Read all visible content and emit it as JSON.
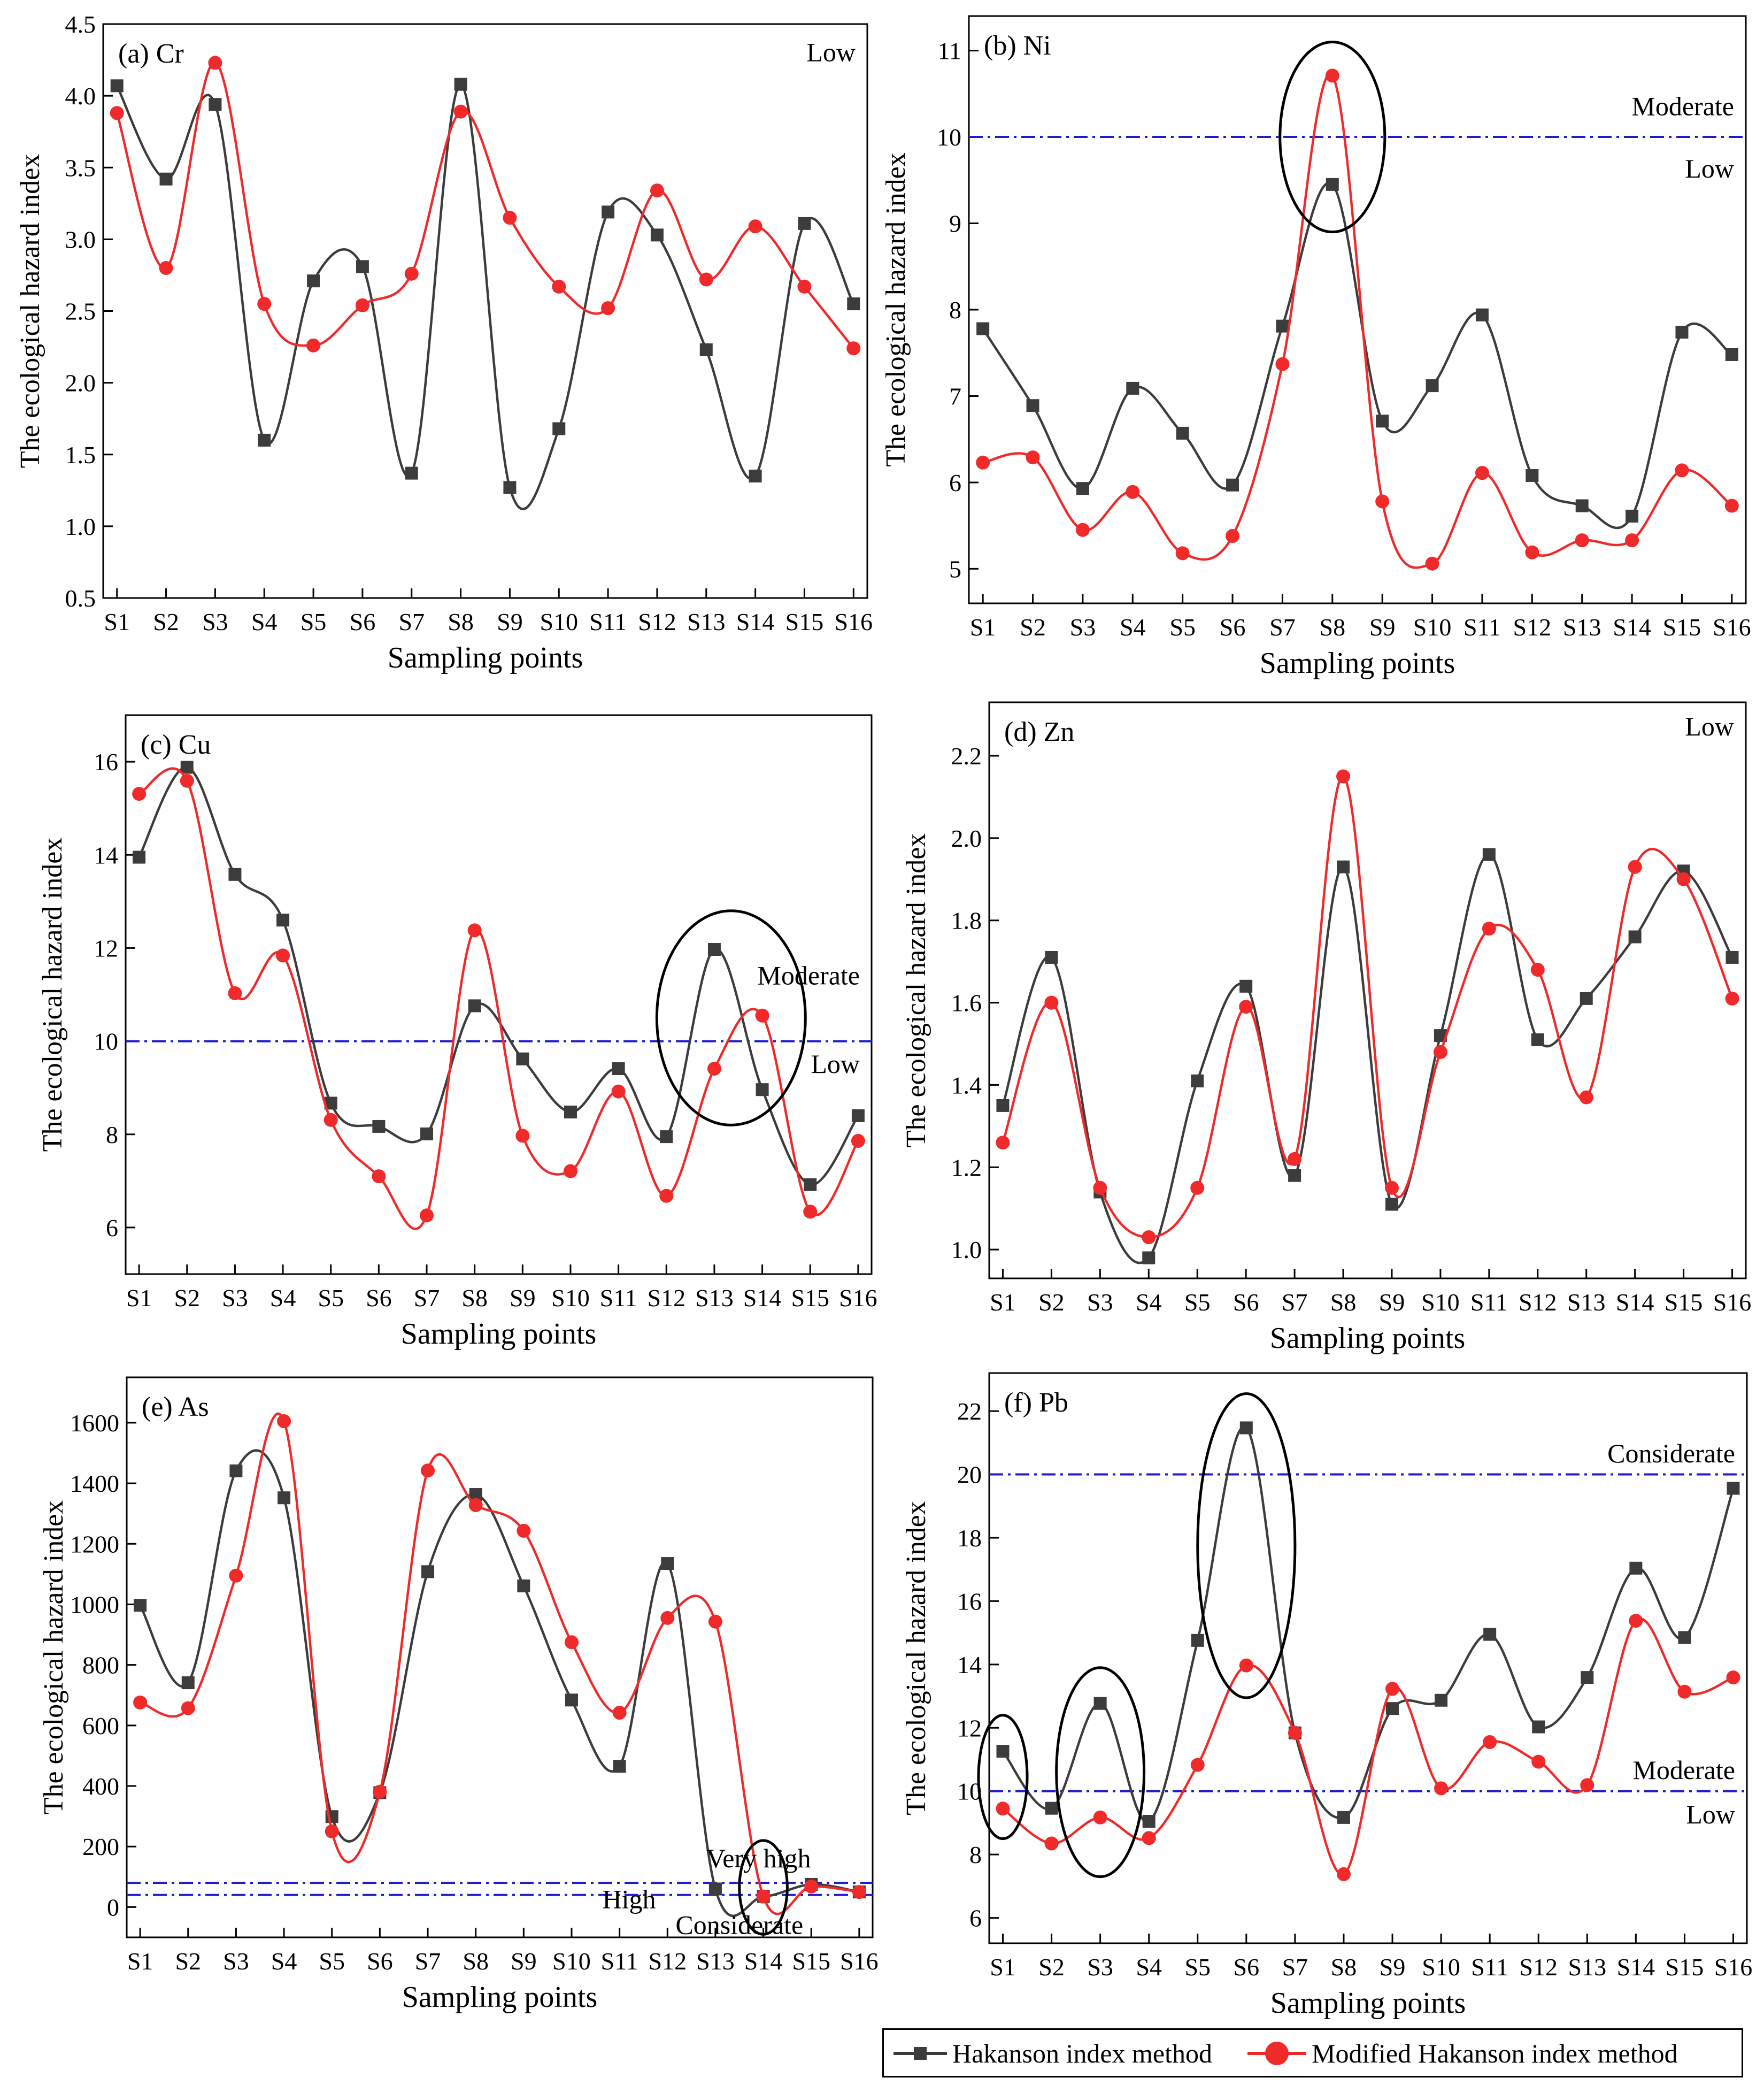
{
  "colors": {
    "hakanson": "#3c3c3c",
    "modified": "#f02a2a",
    "threshold": "#1c1cd6",
    "axis": "#000000"
  },
  "legend": {
    "hakanson_label": "Hakanson index method",
    "modified_label": "Modified Hakanson index method"
  },
  "chart_data": [
    {
      "type": "line",
      "panel_label": "(a) Cr",
      "xlabel": "Sampling points",
      "ylabel": "The ecological hazard index",
      "categories": [
        "S1",
        "S2",
        "S3",
        "S4",
        "S5",
        "S6",
        "S7",
        "S8",
        "S9",
        "S10",
        "S11",
        "S12",
        "S13",
        "S14",
        "S15",
        "S16"
      ],
      "ylim": [
        0.5,
        4.5
      ],
      "yticks": [
        0.5,
        1.0,
        1.5,
        2.0,
        2.5,
        3.0,
        3.5,
        4.0,
        4.5
      ],
      "ytick_labels": [
        "0.5",
        "1.0",
        "1.5",
        "2.0",
        "2.5",
        "3.0",
        "3.5",
        "4.0",
        "4.5"
      ],
      "series": [
        {
          "name": "Hakanson index method",
          "values": [
            4.07,
            3.42,
            3.94,
            1.6,
            2.71,
            2.81,
            1.37,
            4.08,
            1.27,
            1.68,
            3.19,
            3.03,
            2.23,
            1.35,
            3.11,
            2.55
          ]
        },
        {
          "name": "Modified Hakanson index method",
          "values": [
            3.88,
            2.8,
            4.23,
            2.55,
            2.26,
            2.54,
            2.76,
            3.89,
            3.15,
            2.67,
            2.52,
            3.34,
            2.72,
            3.09,
            2.67,
            2.24
          ]
        }
      ],
      "thresholds": [],
      "level_labels": [
        {
          "text": "Low",
          "y": 4.3,
          "pos": "right"
        }
      ],
      "ellipses": []
    },
    {
      "type": "line",
      "panel_label": "(b) Ni",
      "xlabel": "Sampling points",
      "ylabel": "The ecological hazard index",
      "categories": [
        "S1",
        "S2",
        "S3",
        "S4",
        "S5",
        "S6",
        "S7",
        "S8",
        "S9",
        "S10",
        "S11",
        "S12",
        "S13",
        "S14",
        "S15",
        "S16"
      ],
      "ylim": [
        4.6,
        11.4
      ],
      "yticks": [
        5,
        6,
        7,
        8,
        9,
        10,
        11
      ],
      "ytick_labels": [
        "5",
        "6",
        "7",
        "8",
        "9",
        "10",
        "11"
      ],
      "series": [
        {
          "name": "Hakanson index method",
          "values": [
            7.78,
            6.89,
            5.93,
            7.09,
            6.57,
            5.97,
            7.81,
            9.45,
            6.71,
            7.12,
            7.94,
            6.08,
            5.73,
            5.61,
            7.74,
            7.48
          ]
        },
        {
          "name": "Modified Hakanson index method",
          "values": [
            6.23,
            6.29,
            5.45,
            5.89,
            5.18,
            5.38,
            7.37,
            10.71,
            5.78,
            5.06,
            6.11,
            5.19,
            5.33,
            5.33,
            6.14,
            5.73
          ]
        }
      ],
      "thresholds": [
        10
      ],
      "level_labels": [
        {
          "text": "Moderate",
          "y": 10.35,
          "pos": "right"
        },
        {
          "text": "Low",
          "y": 9.63,
          "pos": "right"
        }
      ],
      "ellipses": [
        {
          "cx": 8.0,
          "cy": 10.0,
          "rx": 1.05,
          "ry": 1.1
        }
      ]
    },
    {
      "type": "line",
      "panel_label": "(c) Cu",
      "xlabel": "Sampling points",
      "ylabel": "The ecological hazard index",
      "categories": [
        "S1",
        "S2",
        "S3",
        "S4",
        "S5",
        "S6",
        "S7",
        "S8",
        "S9",
        "S10",
        "S11",
        "S12",
        "S13",
        "S14",
        "S15",
        "S16"
      ],
      "ylim": [
        5.0,
        17.0
      ],
      "yticks": [
        6,
        8,
        10,
        12,
        14,
        16
      ],
      "ytick_labels": [
        "6",
        "8",
        "10",
        "12",
        "14",
        "16"
      ],
      "series": [
        {
          "name": "Hakanson index method",
          "values": [
            13.95,
            15.88,
            13.58,
            12.6,
            8.67,
            8.17,
            8.01,
            10.76,
            9.62,
            8.48,
            9.41,
            7.95,
            11.97,
            8.96,
            6.92,
            8.4
          ]
        },
        {
          "name": "Modified Hakanson index method",
          "values": [
            15.31,
            15.59,
            11.03,
            11.84,
            8.31,
            7.1,
            6.26,
            12.38,
            7.97,
            7.21,
            8.92,
            6.68,
            9.41,
            10.55,
            6.34,
            7.86
          ]
        }
      ],
      "thresholds": [
        10
      ],
      "level_labels": [
        {
          "text": "Moderate",
          "y": 11.4,
          "pos": "right"
        },
        {
          "text": "Low",
          "y": 9.5,
          "pos": "right"
        }
      ],
      "ellipses": [
        {
          "cx": 13.35,
          "cy": 10.5,
          "rx": 1.55,
          "ry": 2.3
        }
      ]
    },
    {
      "type": "line",
      "panel_label": "(d) Zn",
      "xlabel": "Sampling points",
      "ylabel": "The ecological hazard index",
      "categories": [
        "S1",
        "S2",
        "S3",
        "S4",
        "S5",
        "S6",
        "S7",
        "S8",
        "S9",
        "S10",
        "S11",
        "S12",
        "S13",
        "S14",
        "S15",
        "S16"
      ],
      "ylim": [
        0.93,
        2.33
      ],
      "yticks": [
        1.0,
        1.2,
        1.4,
        1.6,
        1.8,
        2.0,
        2.2
      ],
      "ytick_labels": [
        "1.0",
        "1.2",
        "1.4",
        "1.6",
        "1.8",
        "2.0",
        "2.2"
      ],
      "series": [
        {
          "name": "Hakanson index method",
          "values": [
            1.35,
            1.71,
            1.14,
            0.98,
            1.41,
            1.64,
            1.18,
            1.93,
            1.11,
            1.52,
            1.96,
            1.51,
            1.61,
            1.76,
            1.92,
            1.71
          ]
        },
        {
          "name": "Modified Hakanson index method",
          "values": [
            1.26,
            1.6,
            1.15,
            1.03,
            1.15,
            1.59,
            1.22,
            2.15,
            1.15,
            1.48,
            1.78,
            1.68,
            1.37,
            1.93,
            1.9,
            1.61
          ]
        }
      ],
      "thresholds": [],
      "level_labels": [
        {
          "text": "Low",
          "y": 2.27,
          "pos": "right"
        }
      ],
      "ellipses": []
    },
    {
      "type": "line",
      "panel_label": "(e) As",
      "xlabel": "Sampling points",
      "ylabel": "The ecological hazard index",
      "categories": [
        "S1",
        "S2",
        "S3",
        "S4",
        "S5",
        "S6",
        "S7",
        "S8",
        "S9",
        "S10",
        "S11",
        "S12",
        "S13",
        "S14",
        "S15",
        "S16"
      ],
      "ylim": [
        -100,
        1750
      ],
      "yticks": [
        0,
        200,
        400,
        600,
        800,
        1000,
        1200,
        1400,
        1600
      ],
      "ytick_labels": [
        "0",
        "200",
        "400",
        "600",
        "800",
        "1000",
        "1200",
        "1400",
        "1600"
      ],
      "series": [
        {
          "name": "Hakanson index method",
          "values": [
            997,
            741,
            1441,
            1352,
            299,
            378,
            1108,
            1363,
            1061,
            684,
            465,
            1135,
            60,
            35,
            75,
            50
          ]
        },
        {
          "name": "Modified Hakanson index method",
          "values": [
            676,
            657,
            1095,
            1605,
            250,
            381,
            1442,
            1328,
            1243,
            875,
            642,
            955,
            943,
            35,
            68,
            50
          ]
        }
      ],
      "thresholds": [
        80,
        40
      ],
      "level_labels": [
        {
          "text": "Very high",
          "y": 160,
          "pos": "x",
          "x": 13.9
        },
        {
          "text": "High",
          "y": 25,
          "pos": "x",
          "x": 11.2
        },
        {
          "text": "Considerate",
          "y": -60,
          "pos": "x",
          "x": 13.5
        }
      ],
      "ellipses": [
        {
          "cx": 14.0,
          "cy": 65,
          "rx": 0.5,
          "ry": 155
        }
      ]
    },
    {
      "type": "line",
      "panel_label": "(f) Pb",
      "xlabel": "Sampling points",
      "ylabel": "The ecological hazard index",
      "categories": [
        "S1",
        "S2",
        "S3",
        "S4",
        "S5",
        "S6",
        "S7",
        "S8",
        "S9",
        "S10",
        "S11",
        "S12",
        "S13",
        "S14",
        "S15",
        "S16"
      ],
      "ylim": [
        5.2,
        23.2
      ],
      "yticks": [
        6,
        8,
        10,
        12,
        14,
        16,
        18,
        20,
        22
      ],
      "ytick_labels": [
        "6",
        "8",
        "10",
        "12",
        "14",
        "16",
        "18",
        "20",
        "22"
      ],
      "series": [
        {
          "name": "Hakanson index method",
          "values": [
            11.26,
            9.46,
            12.77,
            9.05,
            14.76,
            21.47,
            11.84,
            9.17,
            12.61,
            12.87,
            14.95,
            12.03,
            13.59,
            17.04,
            14.85,
            19.56
          ]
        },
        {
          "name": "Modified Hakanson index method",
          "values": [
            9.45,
            8.35,
            9.17,
            8.52,
            10.83,
            13.97,
            11.84,
            7.38,
            13.23,
            10.09,
            11.55,
            10.93,
            10.19,
            15.38,
            13.14,
            13.59
          ]
        }
      ],
      "thresholds": [
        20,
        10
      ],
      "level_labels": [
        {
          "text": "Considerate",
          "y": 20.65,
          "pos": "right"
        },
        {
          "text": "Moderate",
          "y": 10.65,
          "pos": "right"
        },
        {
          "text": "Low",
          "y": 9.25,
          "pos": "right"
        }
      ],
      "ellipses": [
        {
          "cx": 1.0,
          "cy": 10.45,
          "rx": 0.5,
          "ry": 1.95
        },
        {
          "cx": 3.0,
          "cy": 10.6,
          "rx": 0.9,
          "ry": 3.3
        },
        {
          "cx": 6.0,
          "cy": 17.75,
          "rx": 1.0,
          "ry": 4.8
        }
      ]
    }
  ]
}
